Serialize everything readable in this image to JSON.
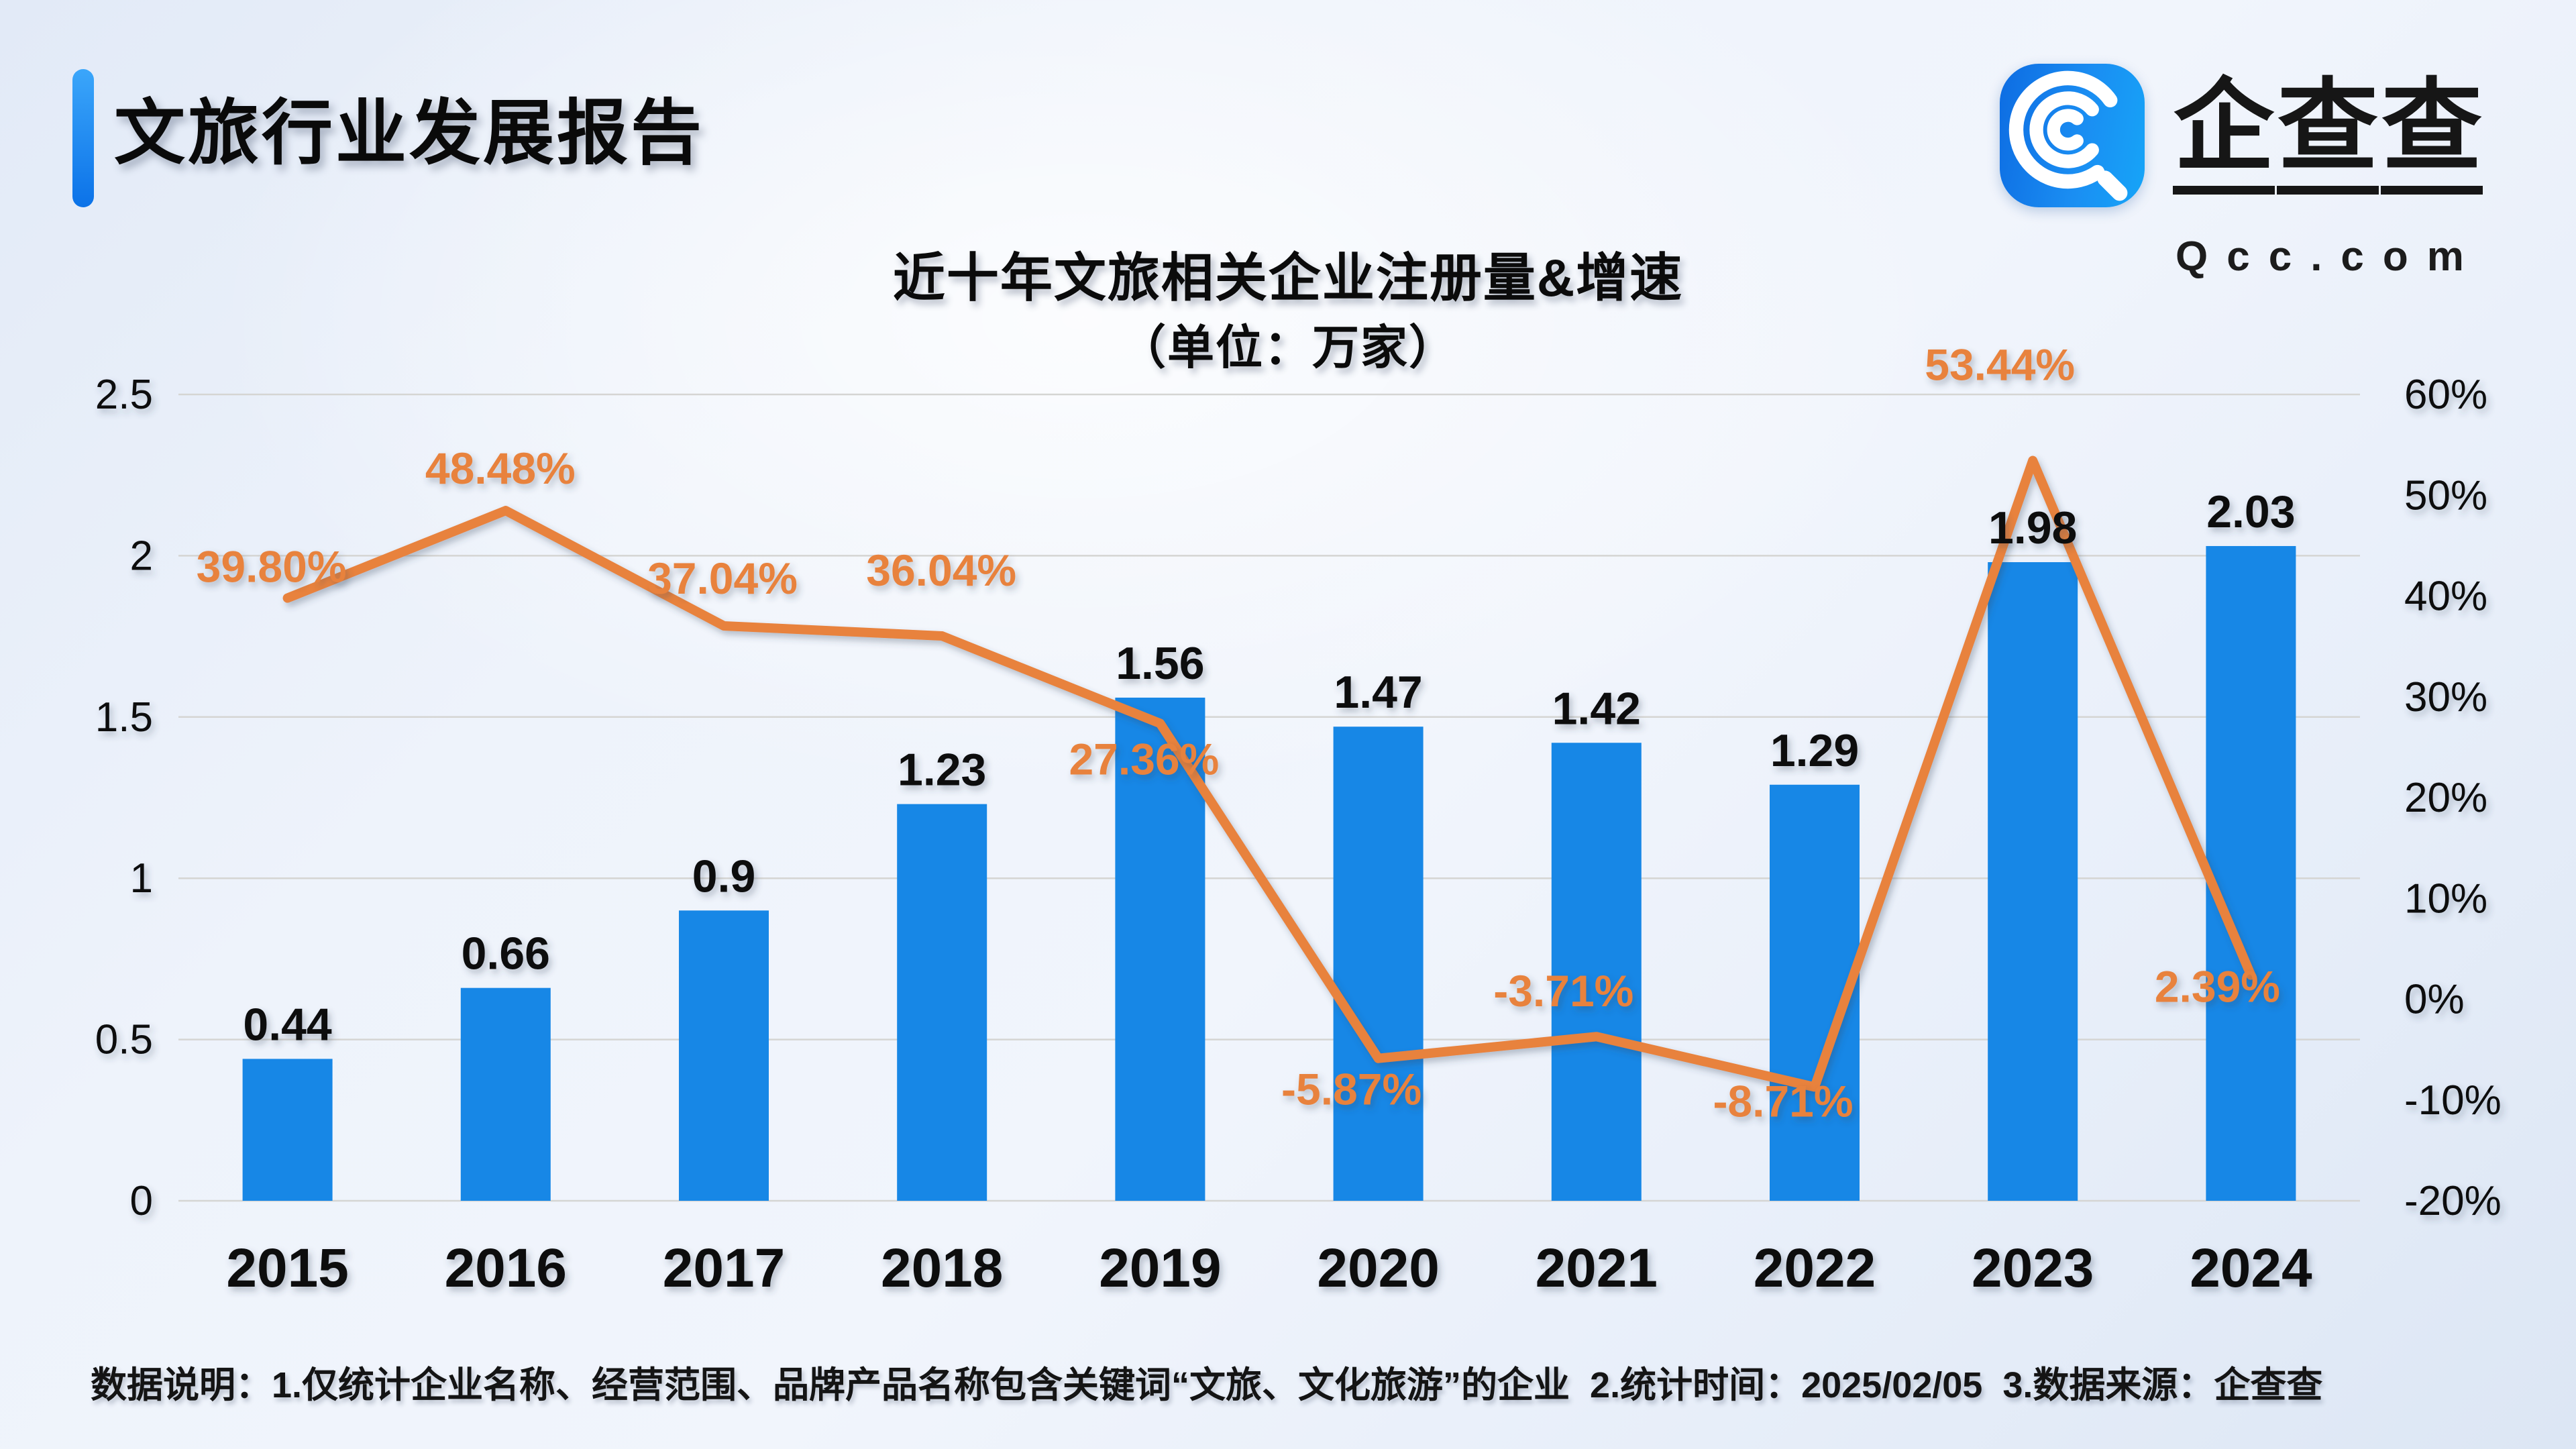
{
  "header": {
    "report_title": "文旅行业发展报告",
    "logo": {
      "icon": "qcc-magnifier-icon",
      "brand_cn": "企查查",
      "brand_domain": "Qcc.com"
    }
  },
  "chart_data": {
    "type": "combo_bar_line",
    "title": "近十年文旅相关企业注册量&增速",
    "subtitle": "（单位：万家）",
    "categories": [
      "2015",
      "2016",
      "2017",
      "2018",
      "2019",
      "2020",
      "2021",
      "2022",
      "2023",
      "2024"
    ],
    "series": [
      {
        "name": "注册量",
        "type": "bar",
        "axis": "left",
        "color": "#1787e6",
        "values": [
          0.44,
          0.66,
          0.9,
          1.23,
          1.56,
          1.47,
          1.42,
          1.29,
          1.98,
          2.03
        ],
        "labels": [
          "0.44",
          "0.66",
          "0.9",
          "1.23",
          "1.56",
          "1.47",
          "1.42",
          "1.29",
          "1.98",
          "2.03"
        ]
      },
      {
        "name": "增速",
        "type": "line",
        "axis": "right",
        "color": "#e8823c",
        "values": [
          39.8,
          48.48,
          37.04,
          36.04,
          27.36,
          -5.87,
          -3.71,
          -8.71,
          53.44,
          2.39
        ],
        "labels": [
          "39.80%",
          "48.48%",
          "37.04%",
          "36.04%",
          "27.36%",
          "-5.87%",
          "-3.71%",
          "-8.71%",
          "53.44%",
          "2.39%"
        ]
      }
    ],
    "left_axis": {
      "min": 0,
      "max": 2.5,
      "tick_values": [
        0,
        0.5,
        1,
        1.5,
        2,
        2.5
      ],
      "tick_labels": [
        "0",
        "0.5",
        "1",
        "1.5",
        "2",
        "2.5"
      ]
    },
    "right_axis": {
      "min": -20,
      "max": 60,
      "tick_values": [
        -20,
        -10,
        0,
        10,
        20,
        30,
        40,
        50,
        60
      ],
      "tick_labels": [
        "-20%",
        "-10%",
        "0%",
        "10%",
        "20%",
        "30%",
        "40%",
        "50%",
        "60%"
      ]
    },
    "grid": {
      "horizontal": true,
      "color": "#d5d5d3"
    },
    "legend": "none"
  },
  "footer": {
    "note": "数据说明：1.仅统计企业名称、经营范围、品牌产品名称包含关键词“文旅、文化旅游”的企业  2.统计时间：2025/02/05  3.数据来源：企查查"
  },
  "colors": {
    "bar_blue": "#1787e6",
    "line_orange": "#e8823c",
    "accent_blue": "#0b72e8",
    "grid_gray": "#d5d5d3",
    "text_dark": "#111111"
  }
}
